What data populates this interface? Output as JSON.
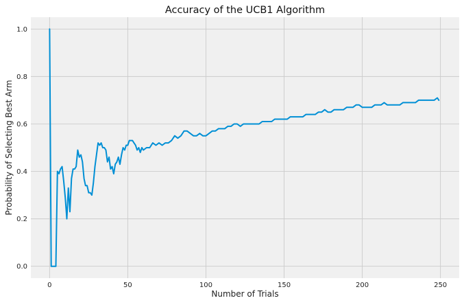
{
  "chart_data": {
    "type": "line",
    "title": "Accuracy of the UCB1 Algorithm",
    "xlabel": "Number of Trials",
    "ylabel": "Probability of Selecting Best Arm",
    "xlim": [
      -12,
      262
    ],
    "ylim": [
      -0.05,
      1.05
    ],
    "xticks": [
      0,
      50,
      100,
      150,
      200,
      250
    ],
    "yticks": [
      0.0,
      0.2,
      0.4,
      0.6,
      0.8,
      1.0
    ],
    "xtick_labels": [
      "0",
      "50",
      "100",
      "150",
      "200",
      "250"
    ],
    "ytick_labels": [
      "0.0",
      "0.2",
      "0.4",
      "0.6",
      "0.8",
      "1.0"
    ],
    "grid": true,
    "legend": "none",
    "background": "#f0f0f0",
    "line_color": "#008fd5",
    "series": [
      {
        "x": [
          0,
          1,
          2,
          3,
          4,
          5,
          6,
          7,
          8,
          9,
          10,
          11,
          12,
          13,
          14,
          15,
          16,
          17,
          18,
          19,
          20,
          21,
          22,
          23,
          24,
          25,
          26,
          27,
          28,
          29,
          30,
          31,
          32,
          33,
          34,
          35,
          36,
          37,
          38,
          39,
          40,
          41,
          42,
          43,
          44,
          45,
          46,
          47,
          48,
          49,
          50,
          51,
          52,
          53,
          54,
          55,
          56,
          57,
          58,
          59,
          60,
          62,
          64,
          66,
          68,
          70,
          72,
          74,
          76,
          78,
          80,
          82,
          84,
          86,
          88,
          90,
          92,
          94,
          96,
          98,
          100,
          102,
          104,
          106,
          108,
          110,
          112,
          114,
          116,
          118,
          120,
          122,
          124,
          126,
          128,
          130,
          132,
          134,
          136,
          138,
          140,
          142,
          144,
          146,
          148,
          150,
          152,
          154,
          156,
          158,
          160,
          162,
          164,
          166,
          168,
          170,
          172,
          174,
          176,
          178,
          180,
          182,
          184,
          186,
          188,
          190,
          192,
          194,
          196,
          198,
          200,
          202,
          204,
          206,
          208,
          210,
          212,
          214,
          216,
          218,
          220,
          222,
          224,
          226,
          228,
          230,
          232,
          234,
          236,
          238,
          240,
          242,
          244,
          246,
          248,
          249
        ],
        "y": [
          1.0,
          0.0,
          0.0,
          0.0,
          0.0,
          0.4,
          0.39,
          0.41,
          0.42,
          0.36,
          0.29,
          0.2,
          0.33,
          0.23,
          0.37,
          0.41,
          0.41,
          0.42,
          0.49,
          0.46,
          0.47,
          0.44,
          0.37,
          0.34,
          0.34,
          0.31,
          0.31,
          0.3,
          0.35,
          0.42,
          0.47,
          0.52,
          0.51,
          0.52,
          0.5,
          0.5,
          0.49,
          0.44,
          0.46,
          0.41,
          0.42,
          0.39,
          0.43,
          0.44,
          0.46,
          0.43,
          0.47,
          0.5,
          0.49,
          0.51,
          0.51,
          0.53,
          0.53,
          0.53,
          0.52,
          0.51,
          0.49,
          0.5,
          0.48,
          0.5,
          0.49,
          0.5,
          0.5,
          0.52,
          0.51,
          0.52,
          0.51,
          0.52,
          0.52,
          0.53,
          0.55,
          0.54,
          0.55,
          0.57,
          0.57,
          0.56,
          0.55,
          0.55,
          0.56,
          0.55,
          0.55,
          0.56,
          0.57,
          0.57,
          0.58,
          0.58,
          0.58,
          0.59,
          0.59,
          0.6,
          0.6,
          0.59,
          0.6,
          0.6,
          0.6,
          0.6,
          0.6,
          0.6,
          0.61,
          0.61,
          0.61,
          0.61,
          0.62,
          0.62,
          0.62,
          0.62,
          0.62,
          0.63,
          0.63,
          0.63,
          0.63,
          0.63,
          0.64,
          0.64,
          0.64,
          0.64,
          0.65,
          0.65,
          0.66,
          0.65,
          0.65,
          0.66,
          0.66,
          0.66,
          0.66,
          0.67,
          0.67,
          0.67,
          0.68,
          0.68,
          0.67,
          0.67,
          0.67,
          0.67,
          0.68,
          0.68,
          0.68,
          0.69,
          0.68,
          0.68,
          0.68,
          0.68,
          0.68,
          0.69,
          0.69,
          0.69,
          0.69,
          0.69,
          0.7,
          0.7,
          0.7,
          0.7,
          0.7,
          0.7,
          0.71,
          0.7
        ]
      }
    ]
  }
}
